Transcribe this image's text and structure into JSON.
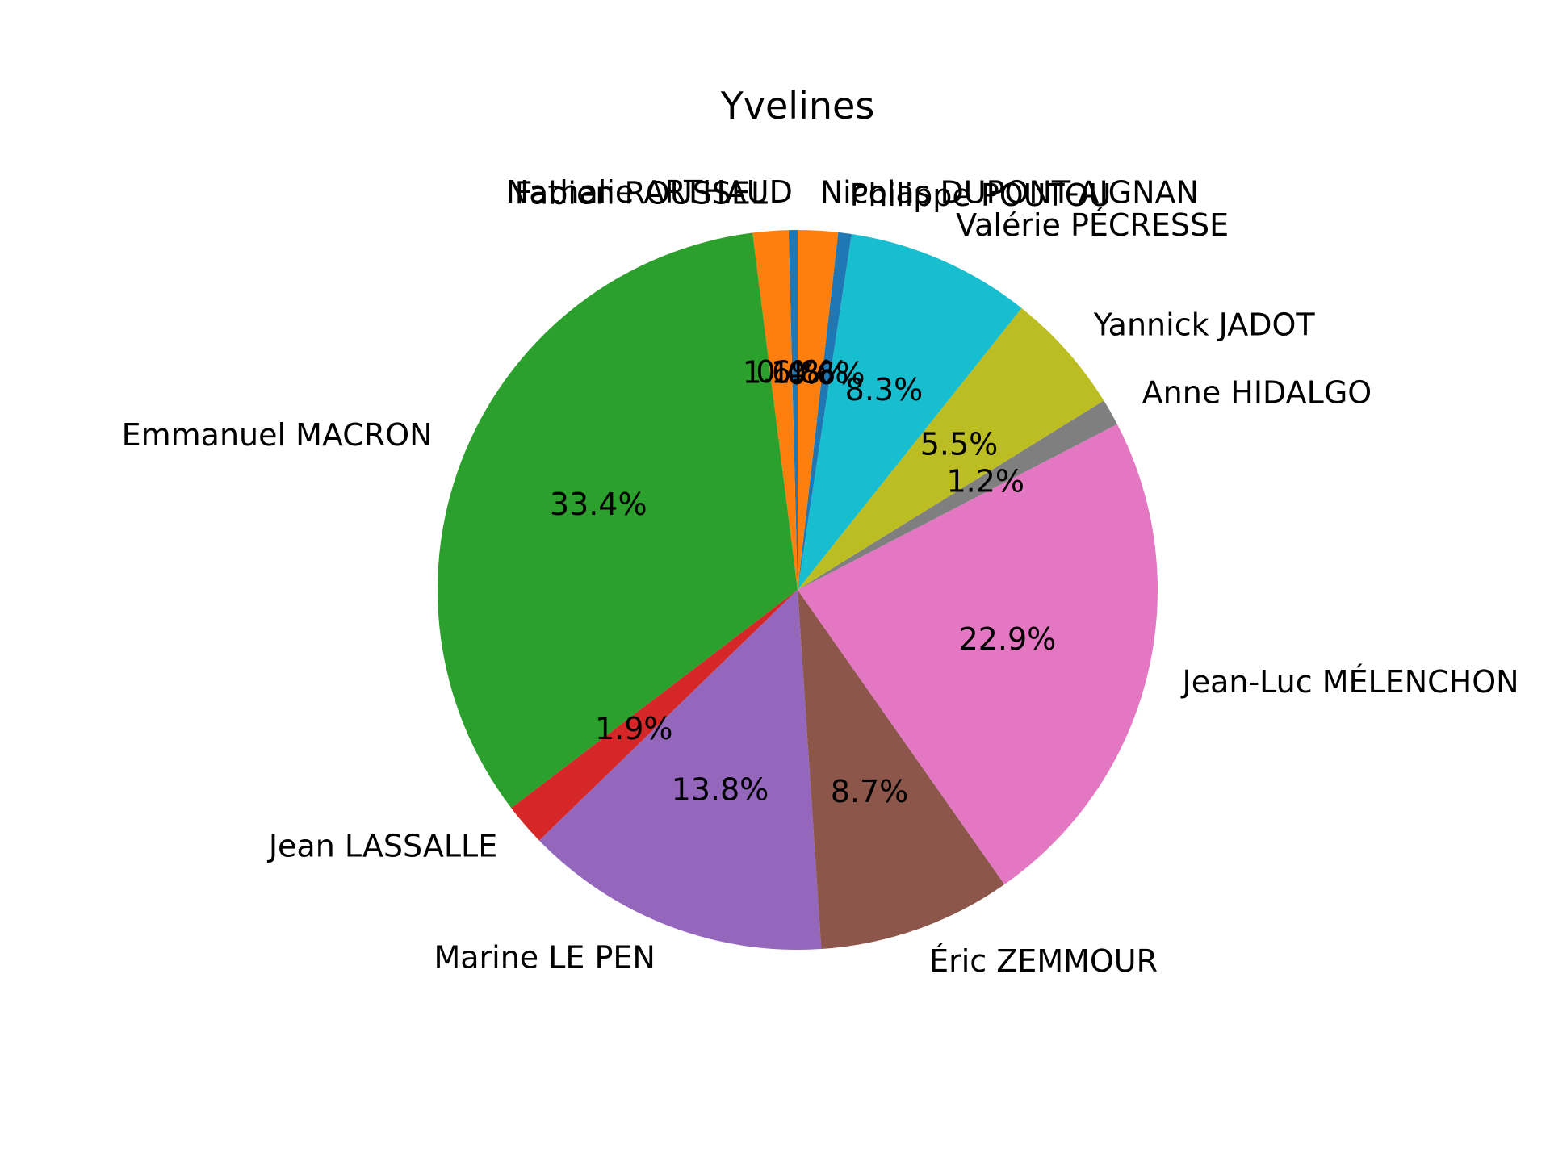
{
  "chart_data": {
    "type": "pie",
    "title": "Yvelines",
    "legend": "none",
    "slices": [
      {
        "label": "Nathalie ARTHAUD",
        "value": 0.4,
        "pct_label": "0.4%",
        "color": "#1f77b4"
      },
      {
        "label": "Fabien ROUSSEL",
        "value": 1.6,
        "pct_label": "1.6%",
        "color": "#ff7f0e"
      },
      {
        "label": "Emmanuel MACRON",
        "value": 33.4,
        "pct_label": "33.4%",
        "color": "#2ca02c"
      },
      {
        "label": "Jean LASSALLE",
        "value": 1.9,
        "pct_label": "1.9%",
        "color": "#d62728"
      },
      {
        "label": "Marine LE PEN",
        "value": 13.8,
        "pct_label": "13.8%",
        "color": "#9467bd"
      },
      {
        "label": "Éric ZEMMOUR",
        "value": 8.7,
        "pct_label": "8.7%",
        "color": "#8c564b"
      },
      {
        "label": "Jean-Luc MÉLENCHON",
        "value": 22.9,
        "pct_label": "22.9%",
        "color": "#e377c2"
      },
      {
        "label": "Anne HIDALGO",
        "value": 1.2,
        "pct_label": "1.2%",
        "color": "#7f7f7f"
      },
      {
        "label": "Yannick JADOT",
        "value": 5.5,
        "pct_label": "5.5%",
        "color": "#bcbd22"
      },
      {
        "label": "Valérie PÉCRESSE",
        "value": 8.3,
        "pct_label": "8.3%",
        "color": "#17becf"
      },
      {
        "label": "Philippe POUTOU",
        "value": 0.6,
        "pct_label": "0.6%",
        "color": "#1f77b4"
      },
      {
        "label": "Nicolas DUPONT-AIGNAN",
        "value": 1.8,
        "pct_label": "1.8%",
        "color": "#ff7f0e"
      }
    ]
  }
}
